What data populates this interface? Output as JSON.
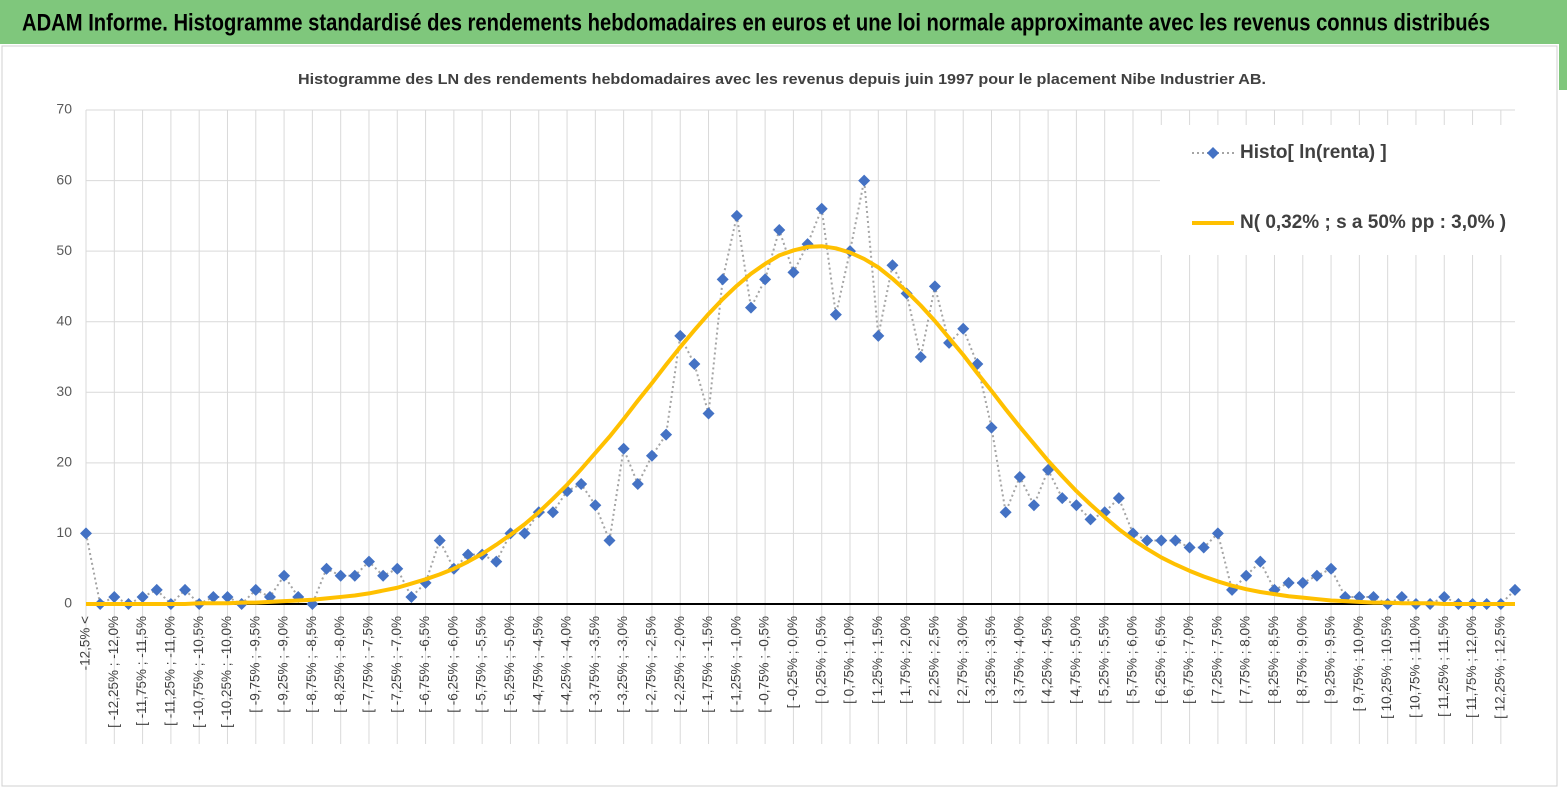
{
  "header": {
    "title": "ADAM Informe. Histogramme standardisé des rendements hebdomadaires en euros et une loi normale approximante avec les revenus connus distribués"
  },
  "chart_data": {
    "type": "line",
    "title": "Histogramme  des LN des rendements hebdomadaires avec les revenus depuis juin 1997  pour le placement Nibe Industrier AB.",
    "categories": [
      "-12,5% <",
      null,
      "[ -12,25% ; -12,0%",
      null,
      "[ -11,75% ; -11,5%",
      null,
      "[ -11,25% ; -11,0%",
      null,
      "[ -10,75% ; -10,5%",
      null,
      "[ -10,25% ; -10,0%",
      null,
      "[ -9,75% ; -9,5%",
      null,
      "[ -9,25% ; -9,0%",
      null,
      "[ -8,75% ; -8,5%",
      null,
      "[ -8,25% ; -8,0%",
      null,
      "[ -7,75% ; -7,5%",
      null,
      "[ -7,25% ; -7,0%",
      null,
      "[ -6,75% ; -6,5%",
      null,
      "[ -6,25% ; -6,0%",
      null,
      "[ -5,75% ; -5,5%",
      null,
      "[ -5,25% ; -5,0%",
      null,
      "[ -4,75% ; -4,5%",
      null,
      "[ -4,25% ; -4,0%",
      null,
      "[ -3,75% ; -3,5%",
      null,
      "[ -3,25% ; -3,0%",
      null,
      "[ -2,75% ; -2,5%",
      null,
      "[ -2,25% ; -2,0%",
      null,
      "[ -1,75% ; -1,5%",
      null,
      "[ -1,25% ; -1,0%",
      null,
      "[ -0,75% ; -0,5%",
      null,
      "[ -0,25% ; 0,0%",
      null,
      "[ 0,25% ; 0,5%",
      null,
      "[ 0,75% ; 1,0%",
      null,
      "[ 1,25% ; 1,5%",
      null,
      "[ 1,75% ; 2,0%",
      null,
      "[ 2,25% ; 2,5%",
      null,
      "[ 2,75% ; 3,0%",
      null,
      "[ 3,25% ; 3,5%",
      null,
      "[ 3,75% ; 4,0%",
      null,
      "[ 4,25% ; 4,5%",
      null,
      "[ 4,75% ; 5,0%",
      null,
      "[ 5,25% ; 5,5%",
      null,
      "[ 5,75% ; 6,0%",
      null,
      "[ 6,25% ; 6,5%",
      null,
      "[ 6,75% ; 7,0%",
      null,
      "[ 7,25% ; 7,5%",
      null,
      "[ 7,75% ; 8,0%",
      null,
      "[ 8,25% ; 8,5%",
      null,
      "[ 8,75% ; 9,0%",
      null,
      "[ 9,25% ; 9,5%",
      null,
      "[ 9,75% ; 10,0%",
      null,
      "[ 10,25% ; 10,5%",
      null,
      "[ 10,75% ; 11,0%",
      null,
      "[ 11,25% ; 11,5%",
      null,
      "[ 11,75% ; 12,0%",
      null,
      "[ 12,25% ; 12,5%",
      null
    ],
    "series": [
      {
        "name": "Histo[ ln(renta) ]",
        "color": "#4472c4",
        "line_color": "#a5a5a5",
        "line_style": "dotted",
        "marker": "diamond",
        "values": [
          10,
          0,
          1,
          0,
          1,
          2,
          0,
          2,
          0,
          1,
          1,
          0,
          2,
          1,
          4,
          1,
          0,
          5,
          4,
          4,
          6,
          4,
          5,
          1,
          3,
          9,
          5,
          7,
          7,
          6,
          10,
          10,
          13,
          13,
          16,
          17,
          14,
          9,
          22,
          17,
          21,
          24,
          38,
          34,
          27,
          46,
          55,
          42,
          46,
          53,
          47,
          51,
          56,
          41,
          50,
          60,
          38,
          48,
          44,
          35,
          45,
          37,
          39,
          34,
          25,
          13,
          18,
          14,
          19,
          15,
          14,
          12,
          13,
          15,
          10,
          9,
          9,
          9,
          8,
          8,
          10,
          2,
          4,
          6,
          2,
          3,
          3,
          4,
          5,
          1,
          1,
          1,
          0,
          1,
          0,
          0,
          1,
          0,
          0,
          0,
          0,
          2
        ]
      },
      {
        "name": "N( 0,32% ; s a 50% pp : 3,0% )",
        "color": "#ffc000",
        "line_style": "solid",
        "values": [
          0.0,
          0.0,
          0.0,
          0.0,
          0.0,
          0.0,
          0.0,
          0.0,
          0.1,
          0.1,
          0.1,
          0.2,
          0.2,
          0.3,
          0.4,
          0.5,
          0.6,
          0.8,
          1.0,
          1.2,
          1.5,
          1.9,
          2.3,
          2.9,
          3.5,
          4.2,
          5.0,
          6.0,
          7.1,
          8.4,
          9.8,
          11.3,
          13.0,
          14.9,
          16.9,
          19.1,
          21.4,
          23.7,
          26.2,
          28.8,
          31.3,
          33.9,
          36.4,
          38.8,
          41.1,
          43.2,
          45.1,
          46.8,
          48.2,
          49.4,
          50.1,
          50.6,
          50.7,
          50.4,
          49.8,
          48.9,
          47.7,
          46.1,
          44.3,
          42.3,
          40.1,
          37.7,
          35.3,
          32.7,
          30.2,
          27.6,
          25.1,
          22.7,
          20.3,
          18.1,
          16.0,
          14.1,
          12.3,
          10.6,
          9.1,
          7.8,
          6.6,
          5.6,
          4.7,
          3.9,
          3.2,
          2.6,
          2.1,
          1.7,
          1.4,
          1.1,
          0.9,
          0.7,
          0.5,
          0.4,
          0.3,
          0.2,
          0.2,
          0.1,
          0.1,
          0.1,
          0.0,
          0.0,
          0.0,
          0.0,
          0.0,
          0.0
        ]
      }
    ],
    "ylim": [
      0,
      70
    ],
    "yticks": [
      0,
      10,
      20,
      30,
      40,
      50,
      60,
      70
    ],
    "grid": true,
    "legend": "upper right"
  }
}
